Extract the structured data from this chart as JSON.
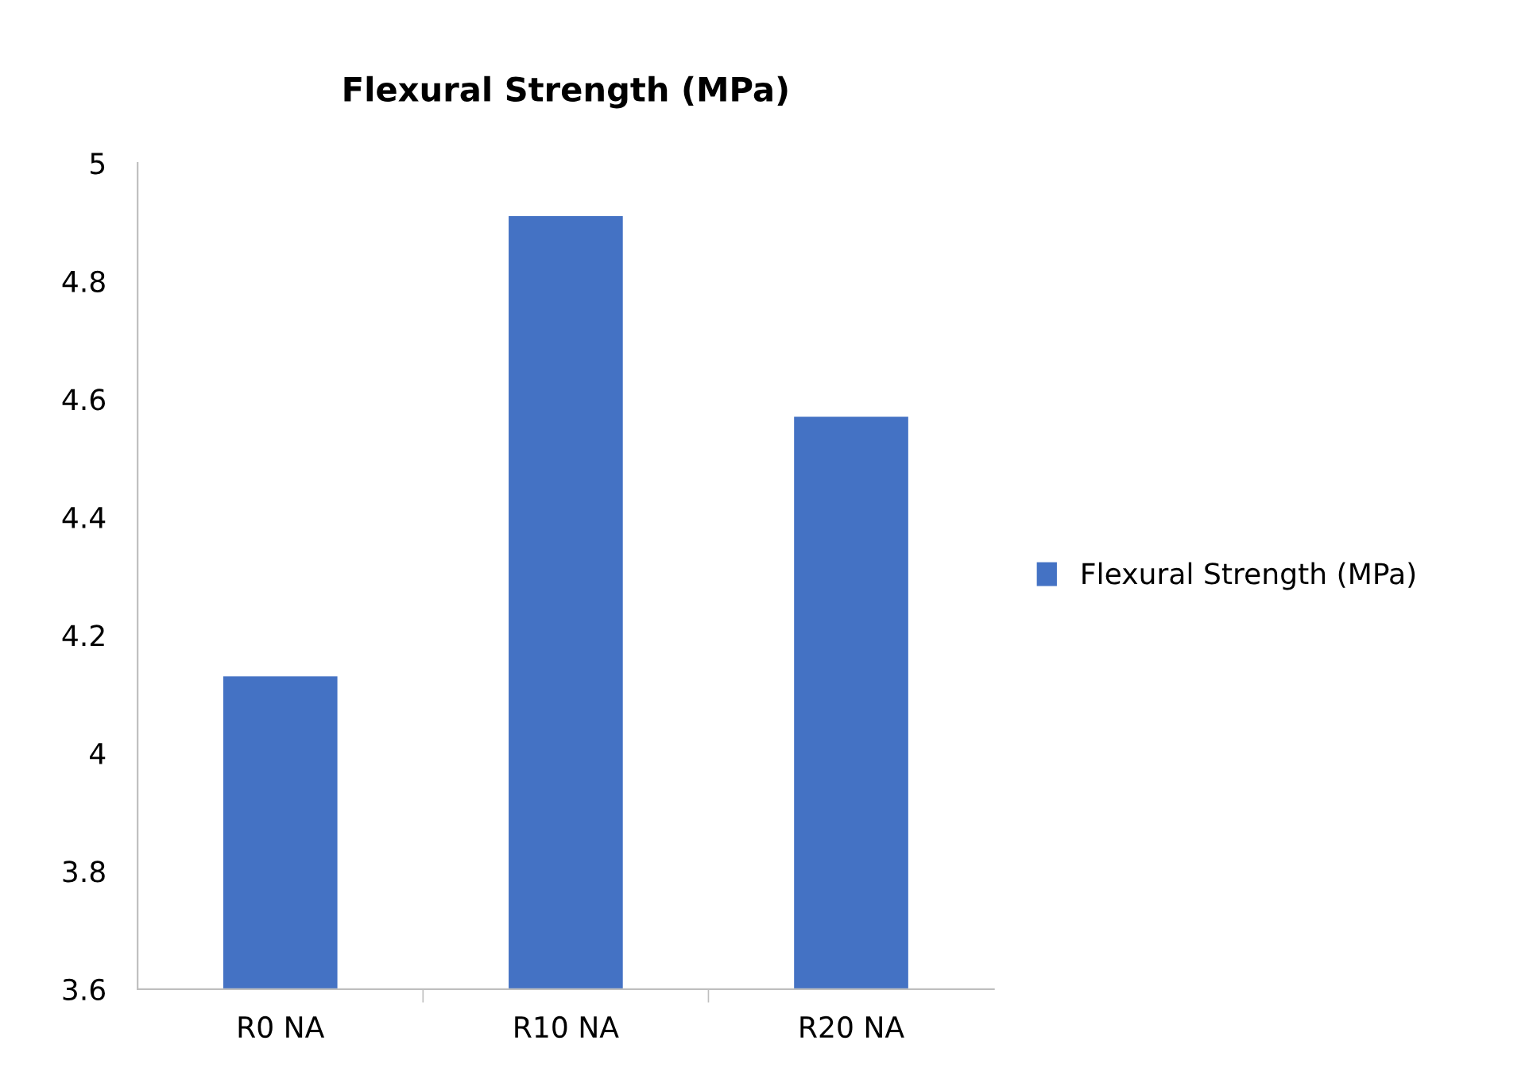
{
  "chart_data": {
    "type": "bar",
    "title": "Flexural Strength (MPa)",
    "categories": [
      "R0 NA",
      "R10 NA",
      "R20 NA"
    ],
    "series": [
      {
        "name": "Flexural Strength (MPa)",
        "color": "#4472c4",
        "values": [
          4.13,
          4.91,
          4.57
        ]
      }
    ],
    "ylim": [
      3.6,
      5
    ],
    "yticks": [
      3.6,
      3.8,
      4,
      4.2,
      4.4,
      4.6,
      4.8,
      5
    ],
    "grid": false,
    "legend": "right"
  }
}
